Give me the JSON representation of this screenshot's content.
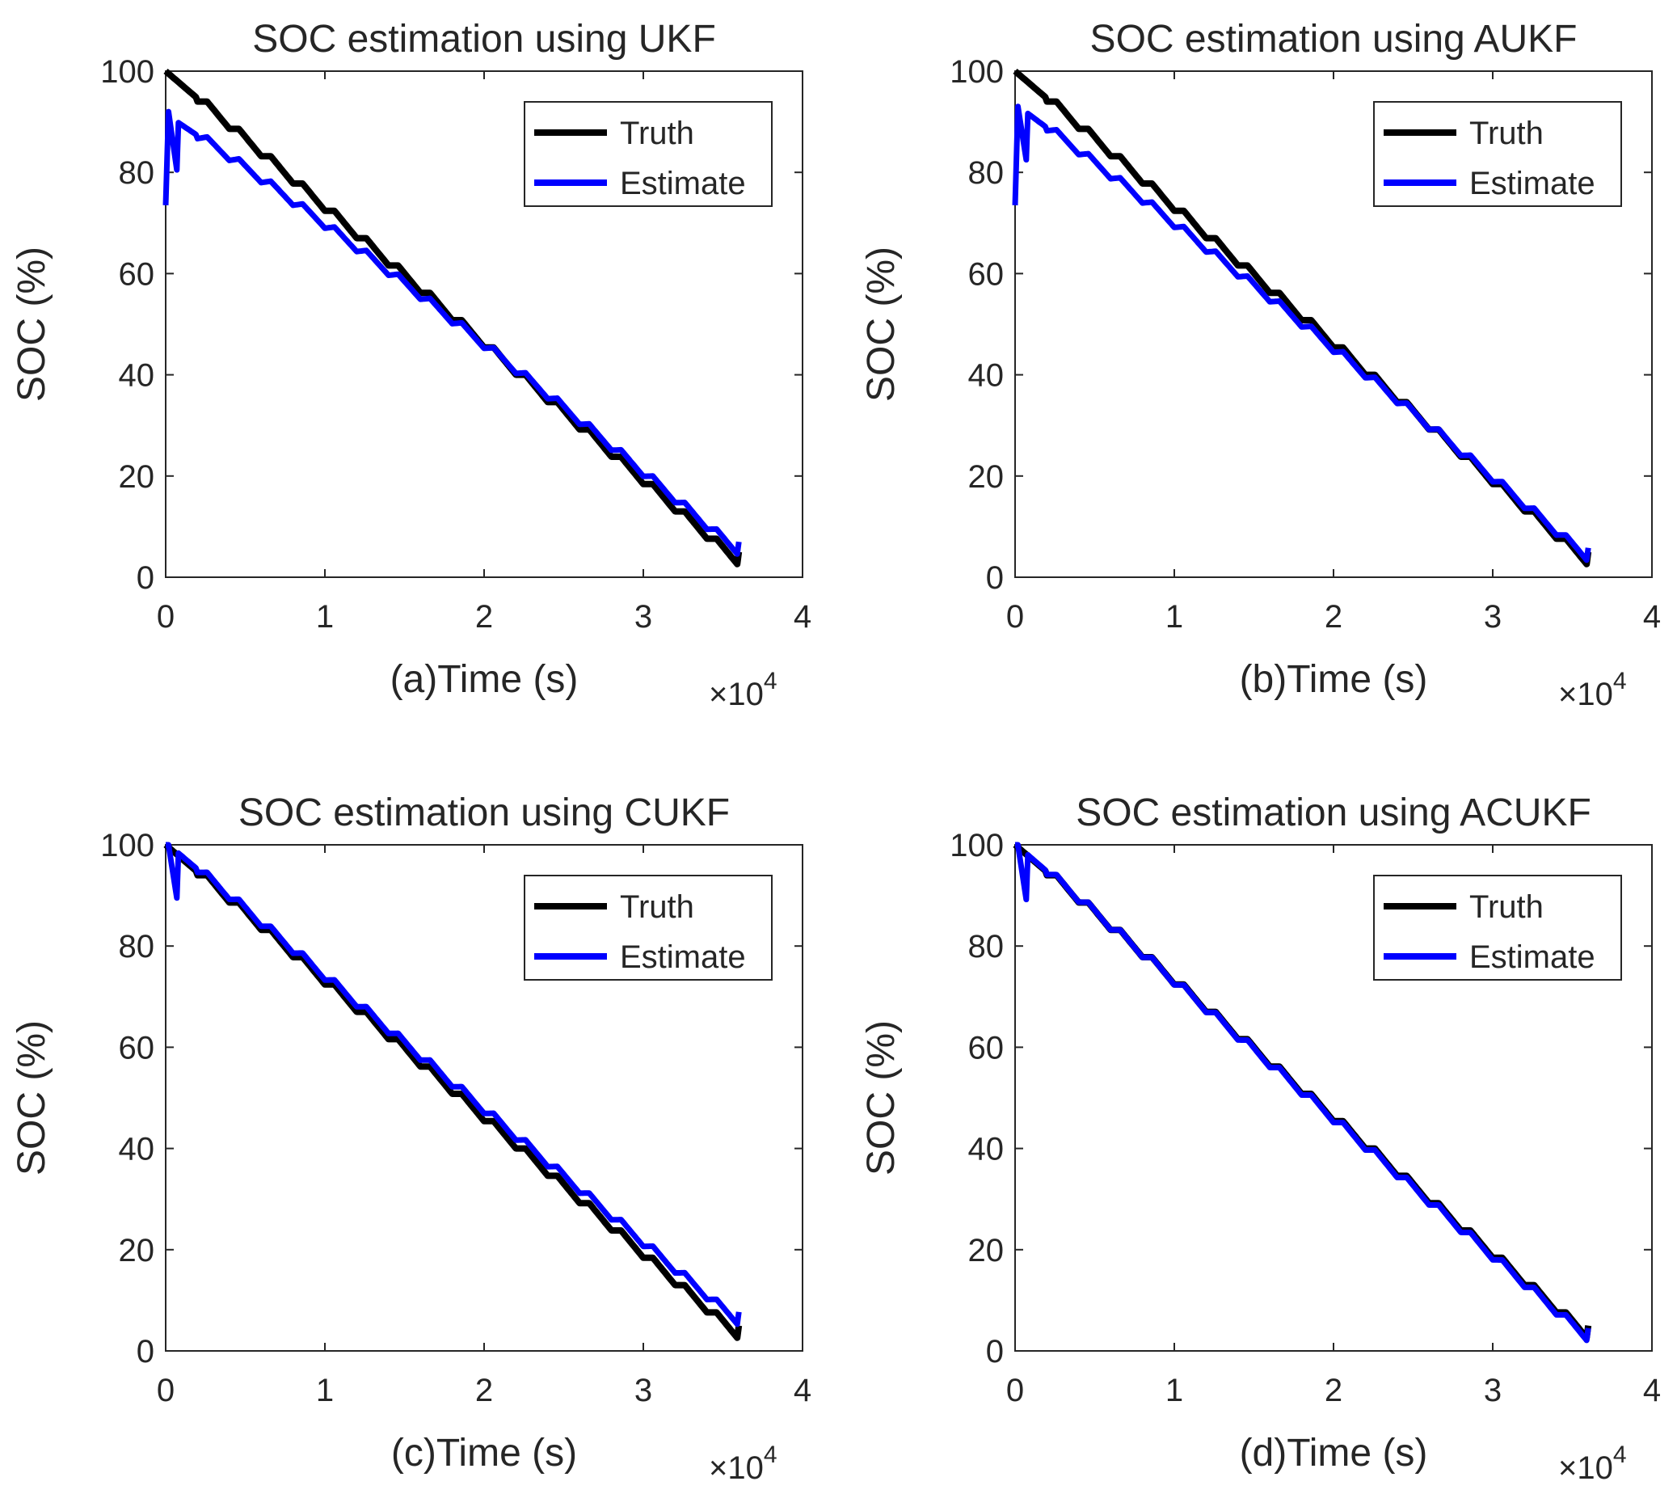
{
  "figure": {
    "x_scale_prefix": "×10",
    "x_scale_exponent": "4"
  },
  "colors": {
    "truth": "#000000",
    "estimate": "#0000ff",
    "axis": "#262626"
  },
  "chart_data": [
    {
      "id": "ukf",
      "type": "line",
      "title": "SOC estimation using UKF",
      "xlabel": "(a)Time (s)",
      "ylabel": "SOC (%)",
      "xlim": [
        0,
        40000
      ],
      "ylim": [
        0,
        100
      ],
      "x_tick_labels": [
        "0",
        "1",
        "2",
        "3",
        "4"
      ],
      "y_tick_labels": [
        "0",
        "20",
        "40",
        "60",
        "80",
        "100"
      ],
      "legend": {
        "position": "top-right",
        "entries": [
          "Truth",
          "Estimate"
        ]
      },
      "initial_estimate": {
        "start": 73.5,
        "peak": 92,
        "settle": 80.5
      },
      "end_offset": 2.0,
      "offset_decay": 0.44,
      "series": [
        {
          "name": "Truth",
          "start": 100,
          "end": 5,
          "color": "#000000"
        },
        {
          "name": "Estimate",
          "color": "#0000ff"
        }
      ]
    },
    {
      "id": "aukf",
      "type": "line",
      "title": "SOC estimation using AUKF",
      "xlabel": "(b)Time (s)",
      "ylabel": "SOC (%)",
      "xlim": [
        0,
        40000
      ],
      "ylim": [
        0,
        100
      ],
      "x_tick_labels": [
        "0",
        "1",
        "2",
        "3",
        "4"
      ],
      "y_tick_labels": [
        "0",
        "20",
        "40",
        "60",
        "80",
        "100"
      ],
      "legend": {
        "position": "top-right",
        "entries": [
          "Truth",
          "Estimate"
        ]
      },
      "initial_estimate": {
        "start": 73.5,
        "peak": 93,
        "settle": 82.5
      },
      "end_offset": 0.8,
      "offset_decay": 0.3,
      "series": [
        {
          "name": "Truth",
          "start": 100,
          "end": 5,
          "color": "#000000"
        },
        {
          "name": "Estimate",
          "color": "#0000ff"
        }
      ]
    },
    {
      "id": "cukf",
      "type": "line",
      "title": "SOC estimation using CUKF",
      "xlabel": "(c)Time (s)",
      "ylabel": "SOC (%)",
      "xlim": [
        0,
        40000
      ],
      "ylim": [
        0,
        100
      ],
      "x_tick_labels": [
        "0",
        "1",
        "2",
        "3",
        "4"
      ],
      "y_tick_labels": [
        "0",
        "20",
        "40",
        "60",
        "80",
        "100"
      ],
      "legend": {
        "position": "top-right",
        "entries": [
          "Truth",
          "Estimate"
        ]
      },
      "initial_estimate": {
        "start": 100,
        "peak": 100,
        "settle": 89.5
      },
      "end_offset": 2.7,
      "offset_decay": 1.0,
      "series": [
        {
          "name": "Truth",
          "start": 100,
          "end": 5,
          "color": "#000000"
        },
        {
          "name": "Estimate",
          "color": "#0000ff"
        }
      ]
    },
    {
      "id": "acukf",
      "type": "line",
      "title": "SOC estimation using ACUKF",
      "xlabel": "(d)Time (s)",
      "ylabel": "SOC (%)",
      "xlim": [
        0,
        40000
      ],
      "ylim": [
        0,
        100
      ],
      "x_tick_labels": [
        "0",
        "1",
        "2",
        "3",
        "4"
      ],
      "y_tick_labels": [
        "0",
        "20",
        "40",
        "60",
        "80",
        "100"
      ],
      "legend": {
        "position": "top-right",
        "entries": [
          "Truth",
          "Estimate"
        ]
      },
      "initial_estimate": {
        "start": 100,
        "peak": 100,
        "settle": 89.2
      },
      "end_offset": -0.5,
      "offset_decay": 1.0,
      "series": [
        {
          "name": "Truth",
          "start": 100,
          "end": 5,
          "color": "#000000"
        },
        {
          "name": "Estimate",
          "color": "#0000ff"
        }
      ]
    }
  ]
}
